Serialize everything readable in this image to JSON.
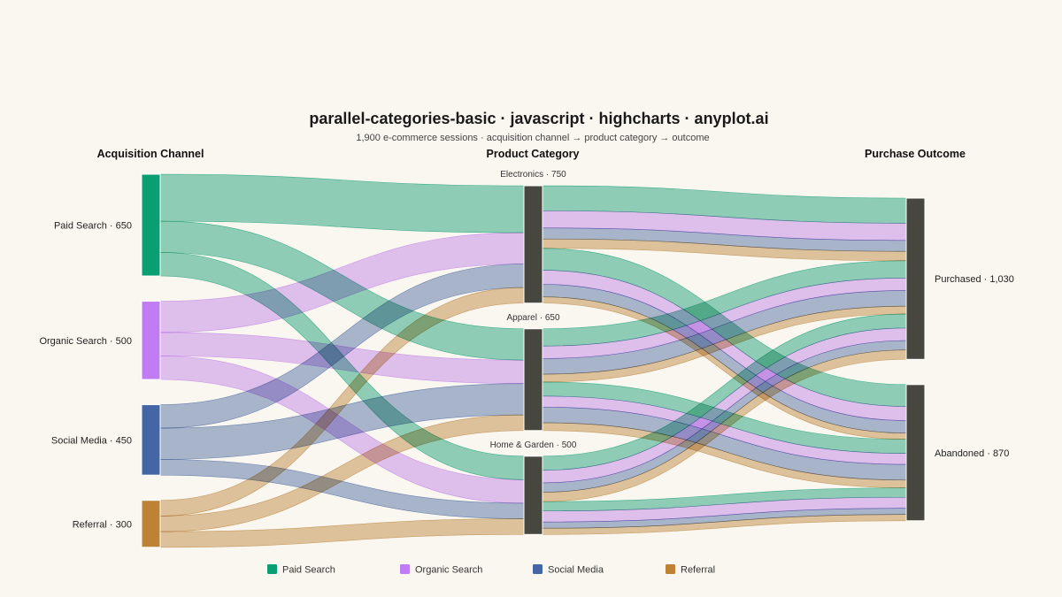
{
  "chart_data": {
    "type": "sankey",
    "title": "parallel-categories-basic · javascript · highcharts · anyplot.ai",
    "subtitle": "1,900 e-commerce sessions · acquisition channel → product category → outcome",
    "dimensions": [
      "Acquisition Channel",
      "Product Category",
      "Purchase Outcome"
    ],
    "nodes": {
      "channel": [
        {
          "id": "Paid Search",
          "label": "Paid Search · 650",
          "value": 650
        },
        {
          "id": "Organic Search",
          "label": "Organic Search · 500",
          "value": 500
        },
        {
          "id": "Social Media",
          "label": "Social Media · 450",
          "value": 450
        },
        {
          "id": "Referral",
          "label": "Referral · 300",
          "value": 300
        }
      ],
      "category": [
        {
          "id": "Electronics",
          "label": "Electronics · 750",
          "value": 750
        },
        {
          "id": "Apparel",
          "label": "Apparel · 650",
          "value": 650
        },
        {
          "id": "Home & Garden",
          "label": "Home & Garden · 500",
          "value": 500
        }
      ],
      "outcome": [
        {
          "id": "Purchased",
          "label": "Purchased · 1,030",
          "value": 1030
        },
        {
          "id": "Abandoned",
          "label": "Abandoned · 870",
          "value": 870
        }
      ]
    },
    "flows_channel_category": [
      {
        "from": "Paid Search",
        "to": "Electronics",
        "value": 300
      },
      {
        "from": "Paid Search",
        "to": "Apparel",
        "value": 200
      },
      {
        "from": "Paid Search",
        "to": "Home & Garden",
        "value": 150
      },
      {
        "from": "Organic Search",
        "to": "Electronics",
        "value": 200
      },
      {
        "from": "Organic Search",
        "to": "Apparel",
        "value": 150
      },
      {
        "from": "Organic Search",
        "to": "Home & Garden",
        "value": 150
      },
      {
        "from": "Social Media",
        "to": "Electronics",
        "value": 150
      },
      {
        "from": "Social Media",
        "to": "Apparel",
        "value": 200
      },
      {
        "from": "Social Media",
        "to": "Home & Garden",
        "value": 100
      },
      {
        "from": "Referral",
        "to": "Electronics",
        "value": 100
      },
      {
        "from": "Referral",
        "to": "Apparel",
        "value": 100
      },
      {
        "from": "Referral",
        "to": "Home & Garden",
        "value": 100
      }
    ],
    "flows_category_outcome": [
      {
        "channel": "Paid Search",
        "category": "Electronics",
        "outcome": "Purchased",
        "value": 160
      },
      {
        "channel": "Organic Search",
        "category": "Electronics",
        "outcome": "Purchased",
        "value": 110
      },
      {
        "channel": "Social Media",
        "category": "Electronics",
        "outcome": "Purchased",
        "value": 70
      },
      {
        "channel": "Referral",
        "category": "Electronics",
        "outcome": "Purchased",
        "value": 60
      },
      {
        "channel": "Paid Search",
        "category": "Apparel",
        "outcome": "Purchased",
        "value": 110
      },
      {
        "channel": "Organic Search",
        "category": "Apparel",
        "outcome": "Purchased",
        "value": 80
      },
      {
        "channel": "Social Media",
        "category": "Apparel",
        "outcome": "Purchased",
        "value": 100
      },
      {
        "channel": "Referral",
        "category": "Apparel",
        "outcome": "Purchased",
        "value": 50
      },
      {
        "channel": "Paid Search",
        "category": "Home & Garden",
        "outcome": "Purchased",
        "value": 90
      },
      {
        "channel": "Organic Search",
        "category": "Home & Garden",
        "outcome": "Purchased",
        "value": 80
      },
      {
        "channel": "Social Media",
        "category": "Home & Garden",
        "outcome": "Purchased",
        "value": 60
      },
      {
        "channel": "Referral",
        "category": "Home & Garden",
        "outcome": "Purchased",
        "value": 60
      },
      {
        "channel": "Paid Search",
        "category": "Electronics",
        "outcome": "Abandoned",
        "value": 140
      },
      {
        "channel": "Organic Search",
        "category": "Electronics",
        "outcome": "Abandoned",
        "value": 90
      },
      {
        "channel": "Social Media",
        "category": "Electronics",
        "outcome": "Abandoned",
        "value": 80
      },
      {
        "channel": "Referral",
        "category": "Electronics",
        "outcome": "Abandoned",
        "value": 40
      },
      {
        "channel": "Paid Search",
        "category": "Apparel",
        "outcome": "Abandoned",
        "value": 90
      },
      {
        "channel": "Organic Search",
        "category": "Apparel",
        "outcome": "Abandoned",
        "value": 70
      },
      {
        "channel": "Social Media",
        "category": "Apparel",
        "outcome": "Abandoned",
        "value": 100
      },
      {
        "channel": "Referral",
        "category": "Apparel",
        "outcome": "Abandoned",
        "value": 50
      },
      {
        "channel": "Paid Search",
        "category": "Home & Garden",
        "outcome": "Abandoned",
        "value": 60
      },
      {
        "channel": "Organic Search",
        "category": "Home & Garden",
        "outcome": "Abandoned",
        "value": 70
      },
      {
        "channel": "Social Media",
        "category": "Home & Garden",
        "outcome": "Abandoned",
        "value": 40
      },
      {
        "channel": "Referral",
        "category": "Home & Garden",
        "outcome": "Abandoned",
        "value": 40
      }
    ],
    "legend": {
      "placement": "bottom-center",
      "items": [
        {
          "name": "Paid Search",
          "color": "#0a9e73"
        },
        {
          "name": "Organic Search",
          "color": "#c07cf2"
        },
        {
          "name": "Social Media",
          "color": "#4566a5"
        },
        {
          "name": "Referral",
          "color": "#bd8236"
        }
      ]
    },
    "colors": {
      "background": "#faf7f1",
      "node_gray": "#47473f",
      "Paid Search": "#0a9e73",
      "Organic Search": "#c07cf2",
      "Social Media": "#4566a5",
      "Referral": "#bd8236"
    }
  }
}
